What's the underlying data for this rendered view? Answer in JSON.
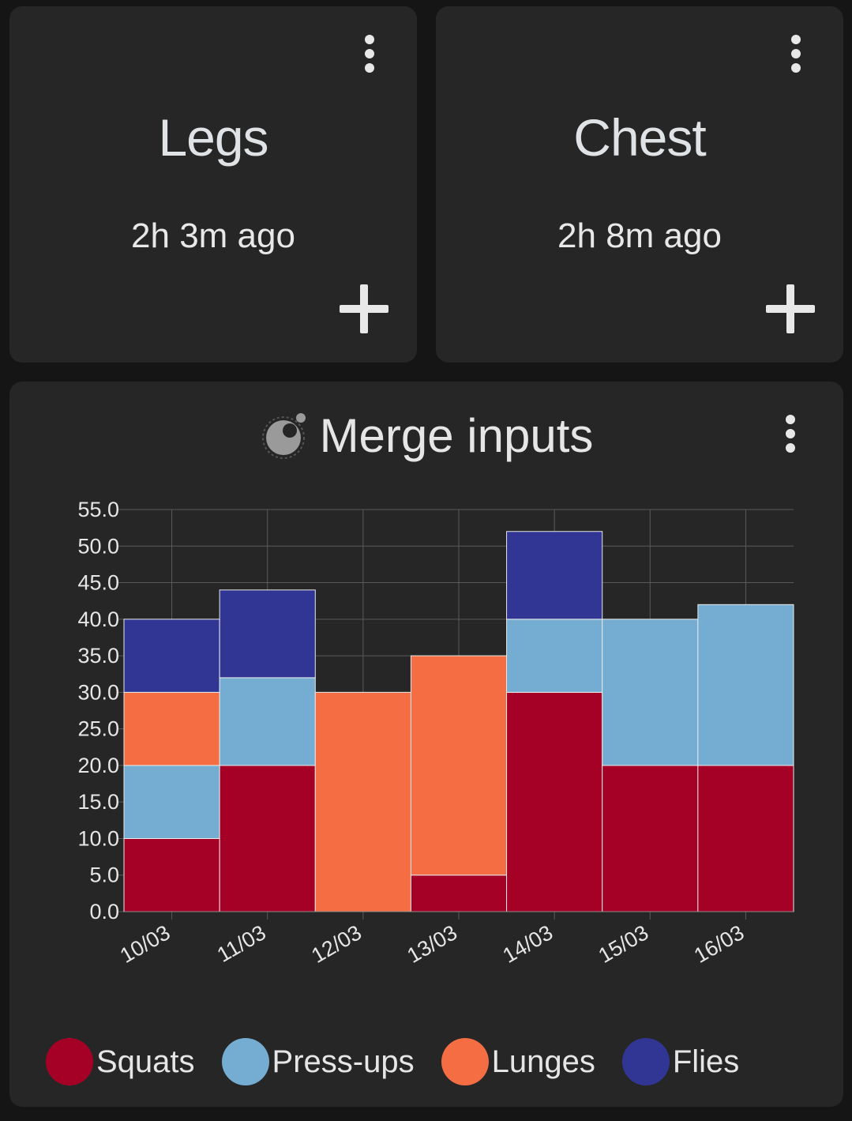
{
  "cards": [
    {
      "title": "Legs",
      "time": "2h 3m ago"
    },
    {
      "title": "Chest",
      "time": "2h 8m ago"
    }
  ],
  "chart_card": {
    "title": "Merge inputs"
  },
  "colors": {
    "Squats": "#a50026",
    "Press-ups": "#74add1",
    "Lunges": "#f46d43",
    "Flies": "#313695"
  },
  "chart_data": {
    "type": "bar",
    "stacked": true,
    "title": "Merge inputs",
    "categories": [
      "10/03",
      "11/03",
      "12/03",
      "13/03",
      "14/03",
      "15/03",
      "16/03"
    ],
    "series": [
      {
        "name": "Squats",
        "values": [
          10,
          20,
          0,
          5,
          30,
          20,
          20
        ]
      },
      {
        "name": "Press-ups",
        "values": [
          10,
          12,
          0,
          0,
          10,
          20,
          22
        ]
      },
      {
        "name": "Lunges",
        "values": [
          10,
          0,
          30,
          30,
          0,
          0,
          0
        ]
      },
      {
        "name": "Flies",
        "values": [
          10,
          12,
          0,
          0,
          12,
          0,
          0
        ]
      }
    ],
    "ylim": [
      0,
      55
    ],
    "yticks": [
      "0.0",
      "5.0",
      "10.0",
      "15.0",
      "20.0",
      "25.0",
      "30.0",
      "35.0",
      "40.0",
      "45.0",
      "50.0",
      "55.0"
    ],
    "grid": true,
    "legend": "bottom"
  }
}
